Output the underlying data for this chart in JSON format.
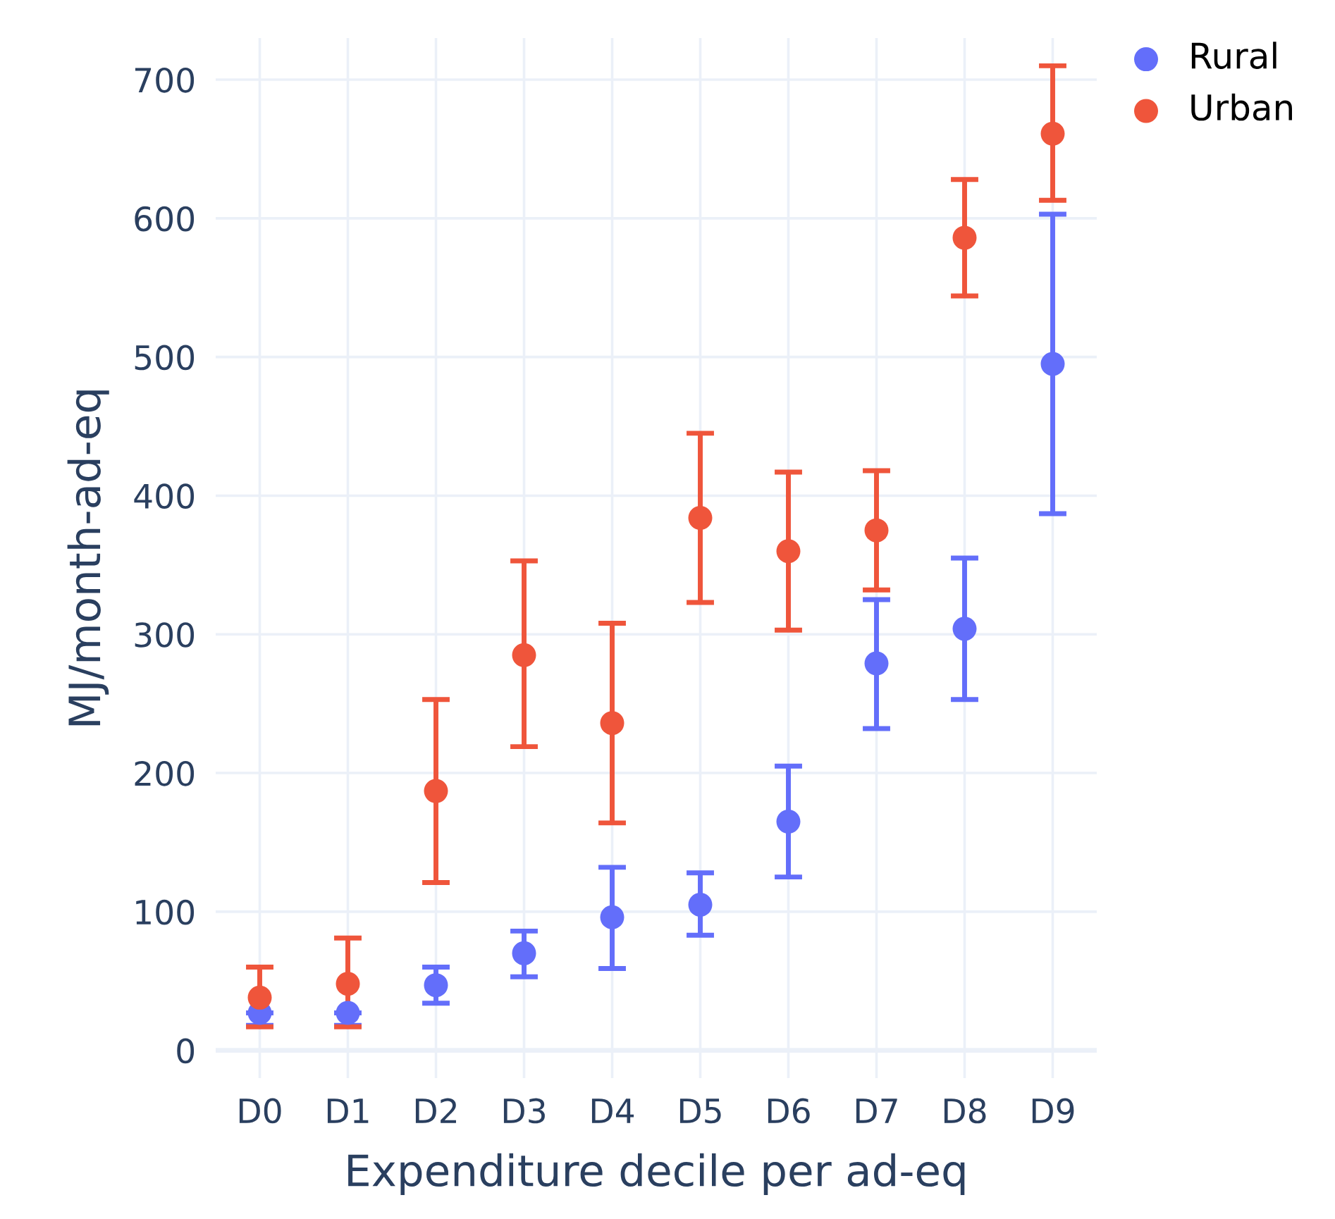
{
  "chart_data": {
    "type": "scatter",
    "xlabel": "Expenditure decile per ad-eq",
    "ylabel": "MJ/month-ad-eq",
    "categories": [
      "D0",
      "D1",
      "D2",
      "D3",
      "D4",
      "D5",
      "D6",
      "D7",
      "D8",
      "D9"
    ],
    "series": [
      {
        "name": "Rural",
        "color": "#636efa",
        "values": [
          27,
          27,
          47,
          70,
          96,
          105,
          165,
          279,
          304,
          495
        ],
        "errors": [
          [
            18,
            27
          ],
          [
            18,
            27
          ],
          [
            34,
            60
          ],
          [
            53,
            86
          ],
          [
            59,
            132
          ],
          [
            83,
            128
          ],
          [
            125,
            205
          ],
          [
            232,
            325
          ],
          [
            253,
            355
          ],
          [
            387,
            603
          ]
        ]
      },
      {
        "name": "Urban",
        "color": "#ef553b",
        "values": [
          38,
          48,
          187,
          285,
          236,
          384,
          360,
          375,
          586,
          661
        ],
        "errors": [
          [
            17,
            60
          ],
          [
            17,
            81
          ],
          [
            121,
            253
          ],
          [
            219,
            353
          ],
          [
            164,
            308
          ],
          [
            323,
            445
          ],
          [
            303,
            417
          ],
          [
            332,
            418
          ],
          [
            544,
            628
          ],
          [
            613,
            710
          ]
        ]
      }
    ],
    "ylim": [
      -20,
      730
    ],
    "yticks": [
      0,
      100,
      200,
      300,
      400,
      500,
      600,
      700
    ],
    "grid": true,
    "legend": "top right",
    "marker": "circle"
  }
}
